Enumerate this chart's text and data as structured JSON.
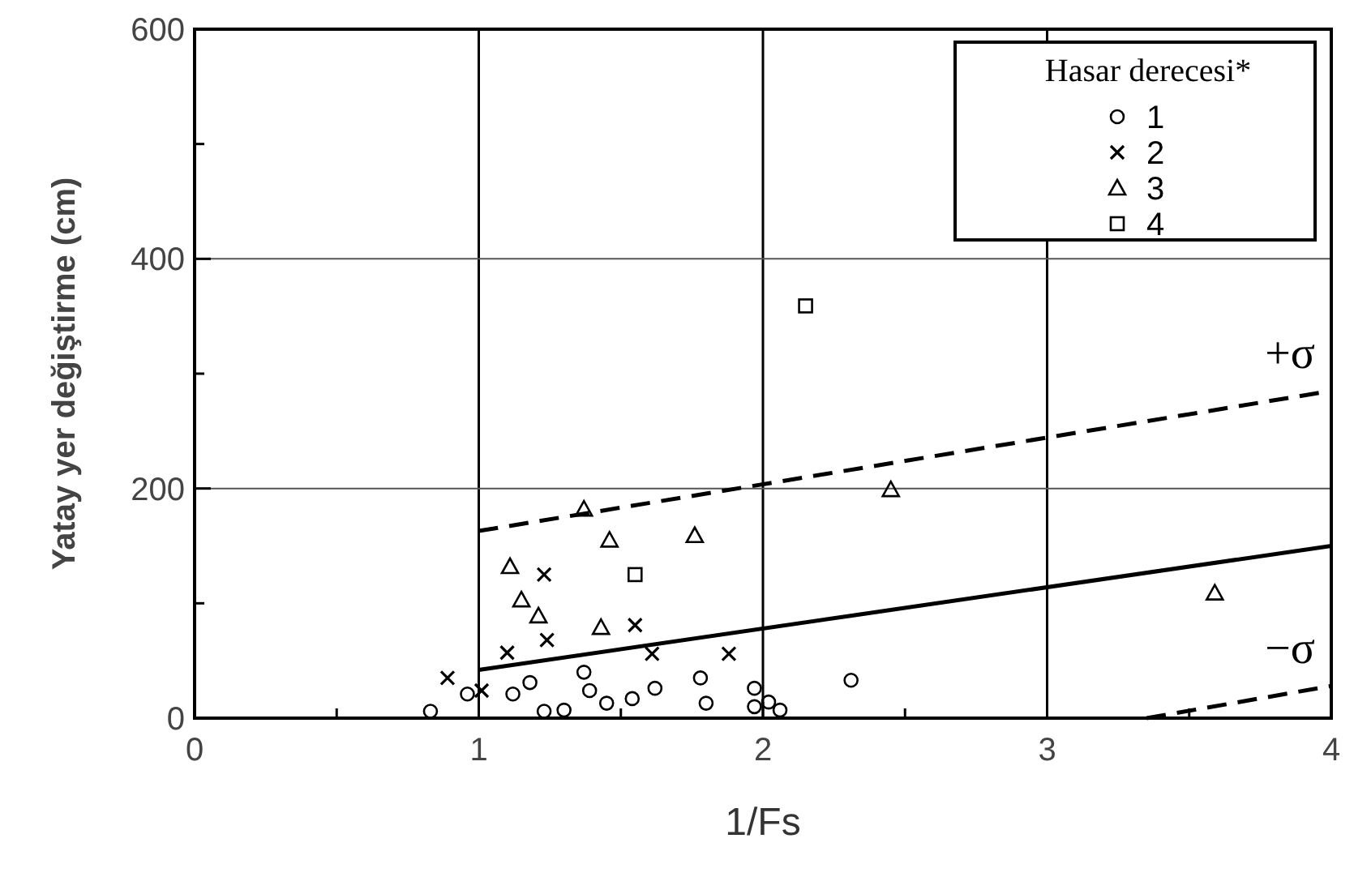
{
  "chart_data": {
    "type": "scatter",
    "xlabel": "1/Fs",
    "ylabel": "Yatay yer değiştirme (cm)",
    "legend_title": "Hasar derecesi*",
    "legend": "top right",
    "grid": true,
    "xlim": [
      0,
      4
    ],
    "ylim": [
      0,
      600
    ],
    "xticks": [
      0,
      {
        "value": 0.5,
        "label": null
      },
      1,
      {
        "value": 1.5,
        "label": null
      },
      2,
      {
        "value": 2.5,
        "label": null
      },
      3,
      {
        "value": 3.5,
        "label": null
      },
      4
    ],
    "yticks": [
      0,
      {
        "value": 100,
        "label": null
      },
      200,
      {
        "value": 300,
        "label": null
      },
      400,
      {
        "value": 500,
        "label": null
      },
      600
    ],
    "series": [
      {
        "name": "1",
        "color": "#000000",
        "marker": "circle",
        "x": [
          0.83,
          0.96,
          1.12,
          1.18,
          1.23,
          1.3,
          1.37,
          1.39,
          1.45,
          1.54,
          1.62,
          1.78,
          1.8,
          1.97,
          1.97,
          2.02,
          2.06,
          2.31
        ],
        "values": [
          6,
          21,
          21,
          31,
          6,
          7,
          40,
          24,
          13,
          17,
          26,
          35,
          13,
          26,
          10,
          14,
          7,
          33
        ]
      },
      {
        "name": "2",
        "color": "#000000",
        "marker": "cross",
        "x": [
          1.23,
          1.24,
          1.1,
          1.55,
          1.61,
          0.89,
          1.01,
          1.88
        ],
        "values": [
          125,
          68,
          57,
          81,
          56,
          35,
          24,
          56
        ]
      },
      {
        "name": "3",
        "color": "#000000",
        "marker": "triangle",
        "x": [
          1.37,
          1.76,
          1.46,
          1.11,
          1.15,
          1.21,
          1.43,
          2.45,
          3.59
        ],
        "values": [
          182,
          159,
          155,
          132,
          103,
          89,
          79,
          199,
          109
        ]
      },
      {
        "name": "4",
        "color": "#000000",
        "marker": "square",
        "x": [
          2.15,
          1.55
        ],
        "values": [
          359,
          125
        ]
      },
      {
        "type": "line",
        "color": "#000000",
        "line_style": "solid",
        "x": [
          1,
          4
        ],
        "values": [
          42,
          150
        ]
      },
      {
        "type": "line",
        "name": "+σ",
        "color": "#000000",
        "line_style": "dashed",
        "x": [
          1,
          4
        ],
        "values": [
          163,
          285
        ]
      },
      {
        "type": "line",
        "name": "−σ",
        "color": "#000000",
        "line_style": "dashed",
        "x": [
          3.35,
          4
        ],
        "values": [
          0,
          28
        ]
      }
    ]
  }
}
